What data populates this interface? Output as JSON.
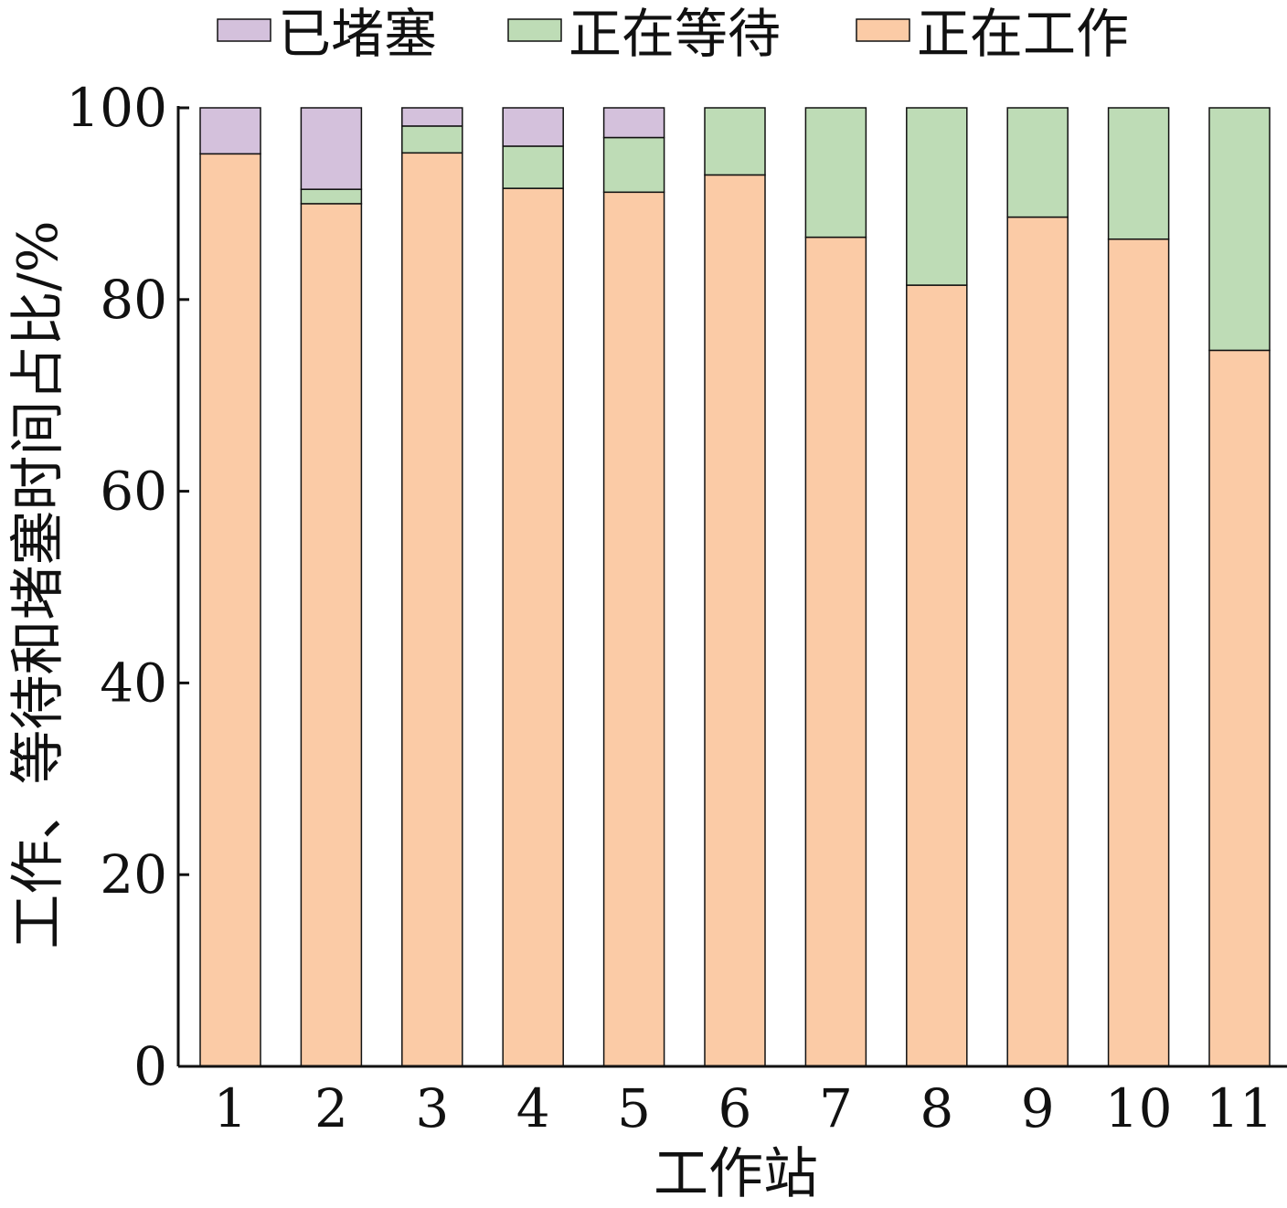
{
  "chart_data": {
    "type": "bar",
    "stacked": true,
    "categories": [
      "1",
      "2",
      "3",
      "4",
      "5",
      "6",
      "7",
      "8",
      "9",
      "10",
      "11"
    ],
    "series": [
      {
        "name": "正在工作",
        "color": "#FBCBA6",
        "values": [
          95.2,
          90.0,
          95.3,
          91.6,
          91.2,
          93.0,
          86.5,
          81.5,
          88.6,
          86.3,
          74.7
        ]
      },
      {
        "name": "正在等待",
        "color": "#BEDCB6",
        "values": [
          0,
          1.5,
          2.8,
          4.4,
          5.7,
          7.0,
          13.5,
          18.5,
          11.4,
          13.7,
          25.3
        ]
      },
      {
        "name": "已堵塞",
        "color": "#D4C1DC",
        "values": [
          4.8,
          8.5,
          1.9,
          4.0,
          3.1,
          0,
          0,
          0,
          0,
          0,
          0
        ]
      }
    ],
    "legend_order": [
      "已堵塞",
      "正在等待",
      "正在工作"
    ],
    "xlabel": "工作站",
    "ylabel": "工作、等待和堵塞时间占比/%",
    "ylim": [
      0,
      100
    ],
    "yticks": [
      0,
      20,
      40,
      60,
      80,
      100
    ],
    "grid": false,
    "legend_position": "top"
  }
}
